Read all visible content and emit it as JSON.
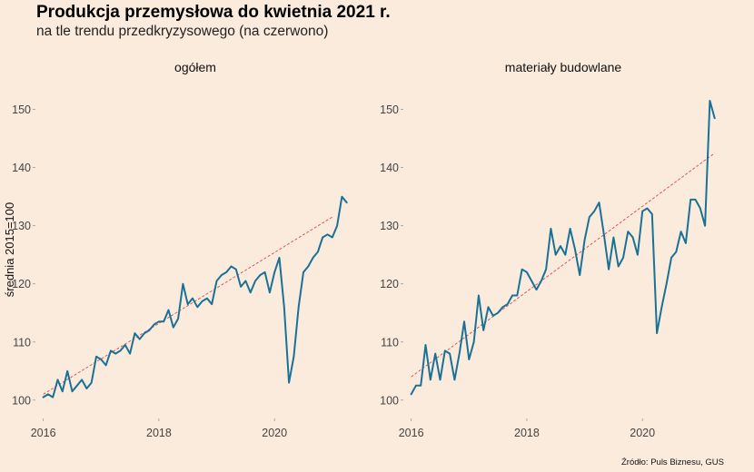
{
  "title": "Produkcja przemysłowa do kwietnia 2021 r.",
  "subtitle": "na tle trendu przedkryzysowego (na czerwono)",
  "caption": "Źródło: Puls Biznesu, GUS",
  "colors": {
    "background": "#faebdd",
    "series": "#1a7196",
    "trend": "#e0474c"
  },
  "chart_data": {
    "type": "line",
    "ylabel": "średnia 2015=100",
    "xlabel": "",
    "ylim": [
      97,
      154
    ],
    "xlim": [
      2015.88,
      2021.38
    ],
    "x_ticks": [
      "2016",
      "2018",
      "2020"
    ],
    "y_ticks": [
      "100",
      "110",
      "120",
      "130",
      "140",
      "150"
    ],
    "grid": false,
    "panels": [
      {
        "name": "ogółem",
        "series": {
          "start": "2016-01",
          "values": [
            100.5,
            101.0,
            100.5,
            103.5,
            101.5,
            105.0,
            101.5,
            102.5,
            103.5,
            102.0,
            103.0,
            107.5,
            107.0,
            106.0,
            108.5,
            108.0,
            108.5,
            109.5,
            108.0,
            111.5,
            110.5,
            111.5,
            112.0,
            113.0,
            113.5,
            113.5,
            115.5,
            112.5,
            114.0,
            120.0,
            116.5,
            117.5,
            116.0,
            117.0,
            117.5,
            116.5,
            120.5,
            121.5,
            122.0,
            123.0,
            122.5,
            119.5,
            120.5,
            118.5,
            120.5,
            121.5,
            122.0,
            118.5,
            122.0,
            124.5,
            116.0,
            103.0,
            107.5,
            116.0,
            122.0,
            123.0,
            124.5,
            125.5,
            128.0,
            128.5,
            128.0,
            130.0,
            135.0,
            134.0
          ]
        },
        "trend": {
          "start": "2016-01",
          "start_value": 101.0,
          "end": "2021-01",
          "end_value": 131.5
        }
      },
      {
        "name": "materiały budowlane",
        "series": {
          "start": "2016-01",
          "values": [
            101.0,
            102.5,
            102.5,
            109.5,
            103.5,
            108.0,
            103.5,
            108.5,
            108.0,
            103.5,
            108.0,
            113.5,
            107.0,
            110.0,
            118.0,
            112.0,
            116.0,
            114.5,
            115.0,
            116.0,
            116.5,
            118.0,
            118.0,
            122.5,
            122.0,
            120.5,
            119.0,
            120.5,
            122.5,
            129.5,
            125.0,
            126.5,
            125.0,
            129.5,
            126.0,
            121.5,
            127.5,
            131.5,
            132.5,
            134.0,
            128.5,
            122.5,
            128.0,
            123.0,
            124.5,
            129.0,
            128.0,
            125.0,
            132.5,
            133.0,
            132.0,
            111.5,
            116.0,
            120.0,
            124.5,
            125.5,
            129.0,
            127.0,
            134.5,
            134.5,
            133.0,
            130.0,
            151.5,
            148.5
          ]
        },
        "trend": {
          "start": "2016-01",
          "start_value": 104.0,
          "end": "2021-04",
          "end_value": 142.5
        }
      }
    ]
  }
}
